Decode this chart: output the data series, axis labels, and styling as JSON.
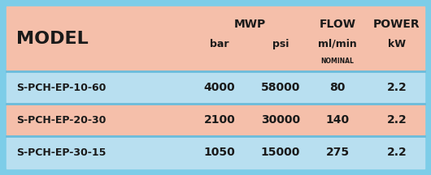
{
  "bg_outer": "#7dcde8",
  "bg_header": "#f5bfaa",
  "bg_row_blue": "#b8dff0",
  "bg_row_salmon": "#f5bfaa",
  "text_color": "#1a1a1a",
  "divider_color": "#6abcdc",
  "header": {
    "model": "MODEL",
    "mwp": "MWP",
    "bar": "bar",
    "psi": "psi",
    "flow": "FLOW",
    "mlmin": "ml/min",
    "nominal": "NOMINAL",
    "power": "POWER",
    "kw": "kW"
  },
  "rows": [
    {
      "model": "S-PCH-EP-10-60",
      "bar": "4000",
      "psi": "58000",
      "flow": "80",
      "power": "2.2"
    },
    {
      "model": "S-PCH-EP-20-30",
      "bar": "2100",
      "psi": "30000",
      "flow": "140",
      "power": "2.2"
    },
    {
      "model": "S-PCH-EP-30-15",
      "bar": "1050",
      "psi": "15000",
      "flow": "275",
      "power": "2.2"
    }
  ],
  "figsize": [
    5.3,
    2.16
  ],
  "dpi": 100
}
